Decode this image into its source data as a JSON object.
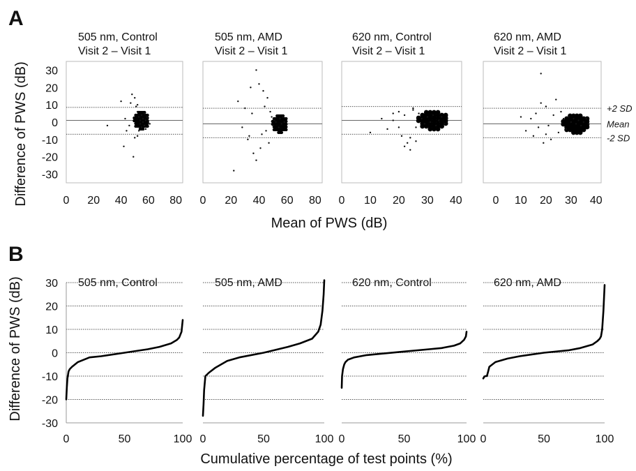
{
  "figure": {
    "panel_a_letter": "A",
    "panel_b_letter": "B",
    "ylabel_a": "Difference of PWS (dB)",
    "ylabel_b": "Difference of PWS (dB)",
    "xlabel_a": "Mean of PWS (dB)",
    "xlabel_b": "Cumulative percentage of test points (%)"
  },
  "chart_data": [
    {
      "type": "scatter",
      "panel": "A",
      "title": "505 nm, Control",
      "subtitle": "Visit 2 – Visit 1",
      "xlim": [
        0,
        85
      ],
      "ylim": [
        -35,
        35
      ],
      "xticks": [
        0,
        20,
        40,
        60,
        80
      ],
      "yticks": [
        30,
        20,
        10,
        0,
        -10,
        -20,
        -30
      ],
      "reference_lines": {
        "plus_2sd": 8.5,
        "mean": 1,
        "minus_2sd": -7
      },
      "x": [
        42,
        44,
        46,
        48,
        49,
        50,
        51,
        52,
        52,
        53,
        53,
        54,
        54,
        55,
        55,
        56,
        56,
        57,
        57,
        58,
        58,
        59,
        60,
        61,
        30,
        40,
        47,
        43,
        50,
        52
      ],
      "y": [
        -14,
        -5,
        -2,
        16,
        -20,
        14,
        9,
        -8,
        6,
        -5,
        3,
        1,
        -1,
        4,
        -3,
        2,
        0,
        5,
        -2,
        1,
        -4,
        3,
        0,
        -1,
        -2,
        12,
        11,
        2,
        -9,
        10
      ]
    },
    {
      "type": "scatter",
      "panel": "A",
      "title": "505 nm, AMD",
      "subtitle": "Visit 2 – Visit 1",
      "xlim": [
        0,
        85
      ],
      "ylim": [
        -35,
        35
      ],
      "xticks": [
        0,
        20,
        40,
        60,
        80
      ],
      "reference_lines": {
        "plus_2sd": 8,
        "mean": -1,
        "minus_2sd": -9
      },
      "x": [
        22,
        25,
        28,
        30,
        32,
        34,
        36,
        38,
        40,
        41,
        42,
        43,
        44,
        45,
        46,
        47,
        48,
        49,
        50,
        51,
        52,
        53,
        54,
        55,
        56,
        57,
        58,
        38,
        35,
        33
      ],
      "y": [
        -28,
        12,
        -3,
        8,
        -10,
        20,
        -18,
        30,
        22,
        -15,
        -7,
        18,
        9,
        -5,
        14,
        -12,
        6,
        3,
        -2,
        1,
        0,
        4,
        -3,
        2,
        -1,
        3,
        0,
        -22,
        5,
        -8
      ]
    },
    {
      "type": "scatter",
      "panel": "A",
      "title": "620 nm, Control",
      "subtitle": "Visit 2 – Visit 1",
      "xlim": [
        0,
        42
      ],
      "ylim": [
        -35,
        35
      ],
      "xticks": [
        0,
        10,
        20,
        30,
        40
      ],
      "reference_lines": {
        "plus_2sd": 9,
        "mean": 1,
        "minus_2sd": -7
      },
      "x": [
        10,
        14,
        16,
        18,
        20,
        21,
        22,
        23,
        24,
        25,
        26,
        27,
        28,
        29,
        30,
        31,
        32,
        33,
        34,
        35,
        36,
        37,
        22,
        24,
        25,
        20,
        18,
        26
      ],
      "y": [
        -6,
        2,
        -4,
        1,
        6,
        -8,
        4,
        -12,
        -16,
        7,
        -3,
        5,
        2,
        -1,
        3,
        0,
        4,
        -2,
        1,
        3,
        -1,
        2,
        -14,
        -9,
        8,
        -3,
        5,
        -11
      ]
    },
    {
      "type": "scatter",
      "panel": "A",
      "title": "620 nm, AMD",
      "subtitle": "Visit 2 – Visit 1",
      "xlim": [
        -5,
        42
      ],
      "ylim": [
        -35,
        35
      ],
      "xticks": [
        0,
        10,
        20,
        30,
        40
      ],
      "reference_lines": {
        "plus_2sd": 8,
        "mean": -1,
        "minus_2sd": -9
      },
      "x": [
        10,
        12,
        14,
        15,
        16,
        17,
        18,
        19,
        20,
        21,
        22,
        23,
        24,
        25,
        26,
        27,
        28,
        29,
        30,
        31,
        32,
        33,
        34,
        35,
        36,
        37,
        18,
        20
      ],
      "y": [
        3,
        -5,
        2,
        -8,
        5,
        -3,
        28,
        -12,
        9,
        -2,
        -10,
        4,
        13,
        -6,
        6,
        2,
        -4,
        3,
        0,
        2,
        -1,
        1,
        -2,
        0,
        2,
        -1,
        11,
        -7
      ]
    },
    {
      "type": "line",
      "panel": "B",
      "title": "505 nm, Control",
      "xlim": [
        0,
        100
      ],
      "ylim": [
        -30,
        30
      ],
      "xticks": [
        0,
        50,
        100
      ],
      "yticks": [
        30,
        20,
        10,
        0,
        -10,
        -20,
        -30
      ],
      "gridlines_y": [
        30,
        20,
        10,
        0,
        -10,
        -20
      ],
      "x": [
        0,
        0.5,
        1,
        2,
        3,
        5,
        10,
        20,
        30,
        50,
        70,
        80,
        90,
        95,
        97,
        99,
        100
      ],
      "y": [
        -20,
        -15,
        -11,
        -8,
        -7,
        -6,
        -4,
        -2,
        -1.5,
        0,
        1.5,
        2.5,
        4,
        5.5,
        6.5,
        9,
        14
      ]
    },
    {
      "type": "line",
      "panel": "B",
      "title": "505 nm, AMD",
      "xlim": [
        0,
        100
      ],
      "ylim": [
        -30,
        30
      ],
      "xticks": [
        0,
        50,
        100
      ],
      "gridlines_y": [
        30,
        20,
        10,
        0,
        -10,
        -20
      ],
      "x": [
        0,
        0.5,
        1,
        2,
        5,
        10,
        20,
        30,
        50,
        70,
        80,
        90,
        95,
        97,
        98.5,
        99.5,
        100
      ],
      "y": [
        -27,
        -22,
        -16,
        -10,
        -8.5,
        -6.5,
        -3.5,
        -2,
        0,
        2.5,
        4,
        6,
        9,
        12,
        18,
        25,
        31
      ]
    },
    {
      "type": "line",
      "panel": "B",
      "title": "620 nm, Control",
      "xlim": [
        0,
        100
      ],
      "ylim": [
        -30,
        30
      ],
      "xticks": [
        0,
        50,
        100
      ],
      "gridlines_y": [
        30,
        20,
        10,
        0,
        -10,
        -20
      ],
      "x": [
        0,
        0.3,
        1,
        2,
        3,
        5,
        10,
        20,
        30,
        50,
        70,
        80,
        90,
        95,
        98,
        99.5,
        100
      ],
      "y": [
        -15,
        -10,
        -7,
        -5,
        -4,
        -3,
        -2,
        -1,
        -0.5,
        0.5,
        1.5,
        2,
        3,
        4,
        5.5,
        7,
        9
      ]
    },
    {
      "type": "line",
      "panel": "B",
      "title": "620 nm, AMD",
      "xlim": [
        0,
        100
      ],
      "ylim": [
        -30,
        30
      ],
      "xticks": [
        0,
        50,
        100
      ],
      "gridlines_y": [
        30,
        20,
        10,
        0,
        -10,
        -20
      ],
      "x": [
        0,
        0.5,
        1.5,
        3,
        4,
        5,
        10,
        20,
        30,
        50,
        70,
        80,
        90,
        94,
        96,
        97,
        98,
        99,
        100
      ],
      "y": [
        -11,
        -10.5,
        -10,
        -10,
        -8,
        -6,
        -4,
        -2.5,
        -1.5,
        0,
        1,
        2,
        3.5,
        5,
        6,
        7,
        10,
        18,
        29
      ]
    }
  ],
  "sd_labels": {
    "plus": "+2 SD",
    "mean": "Mean",
    "minus": "-2 SD"
  }
}
